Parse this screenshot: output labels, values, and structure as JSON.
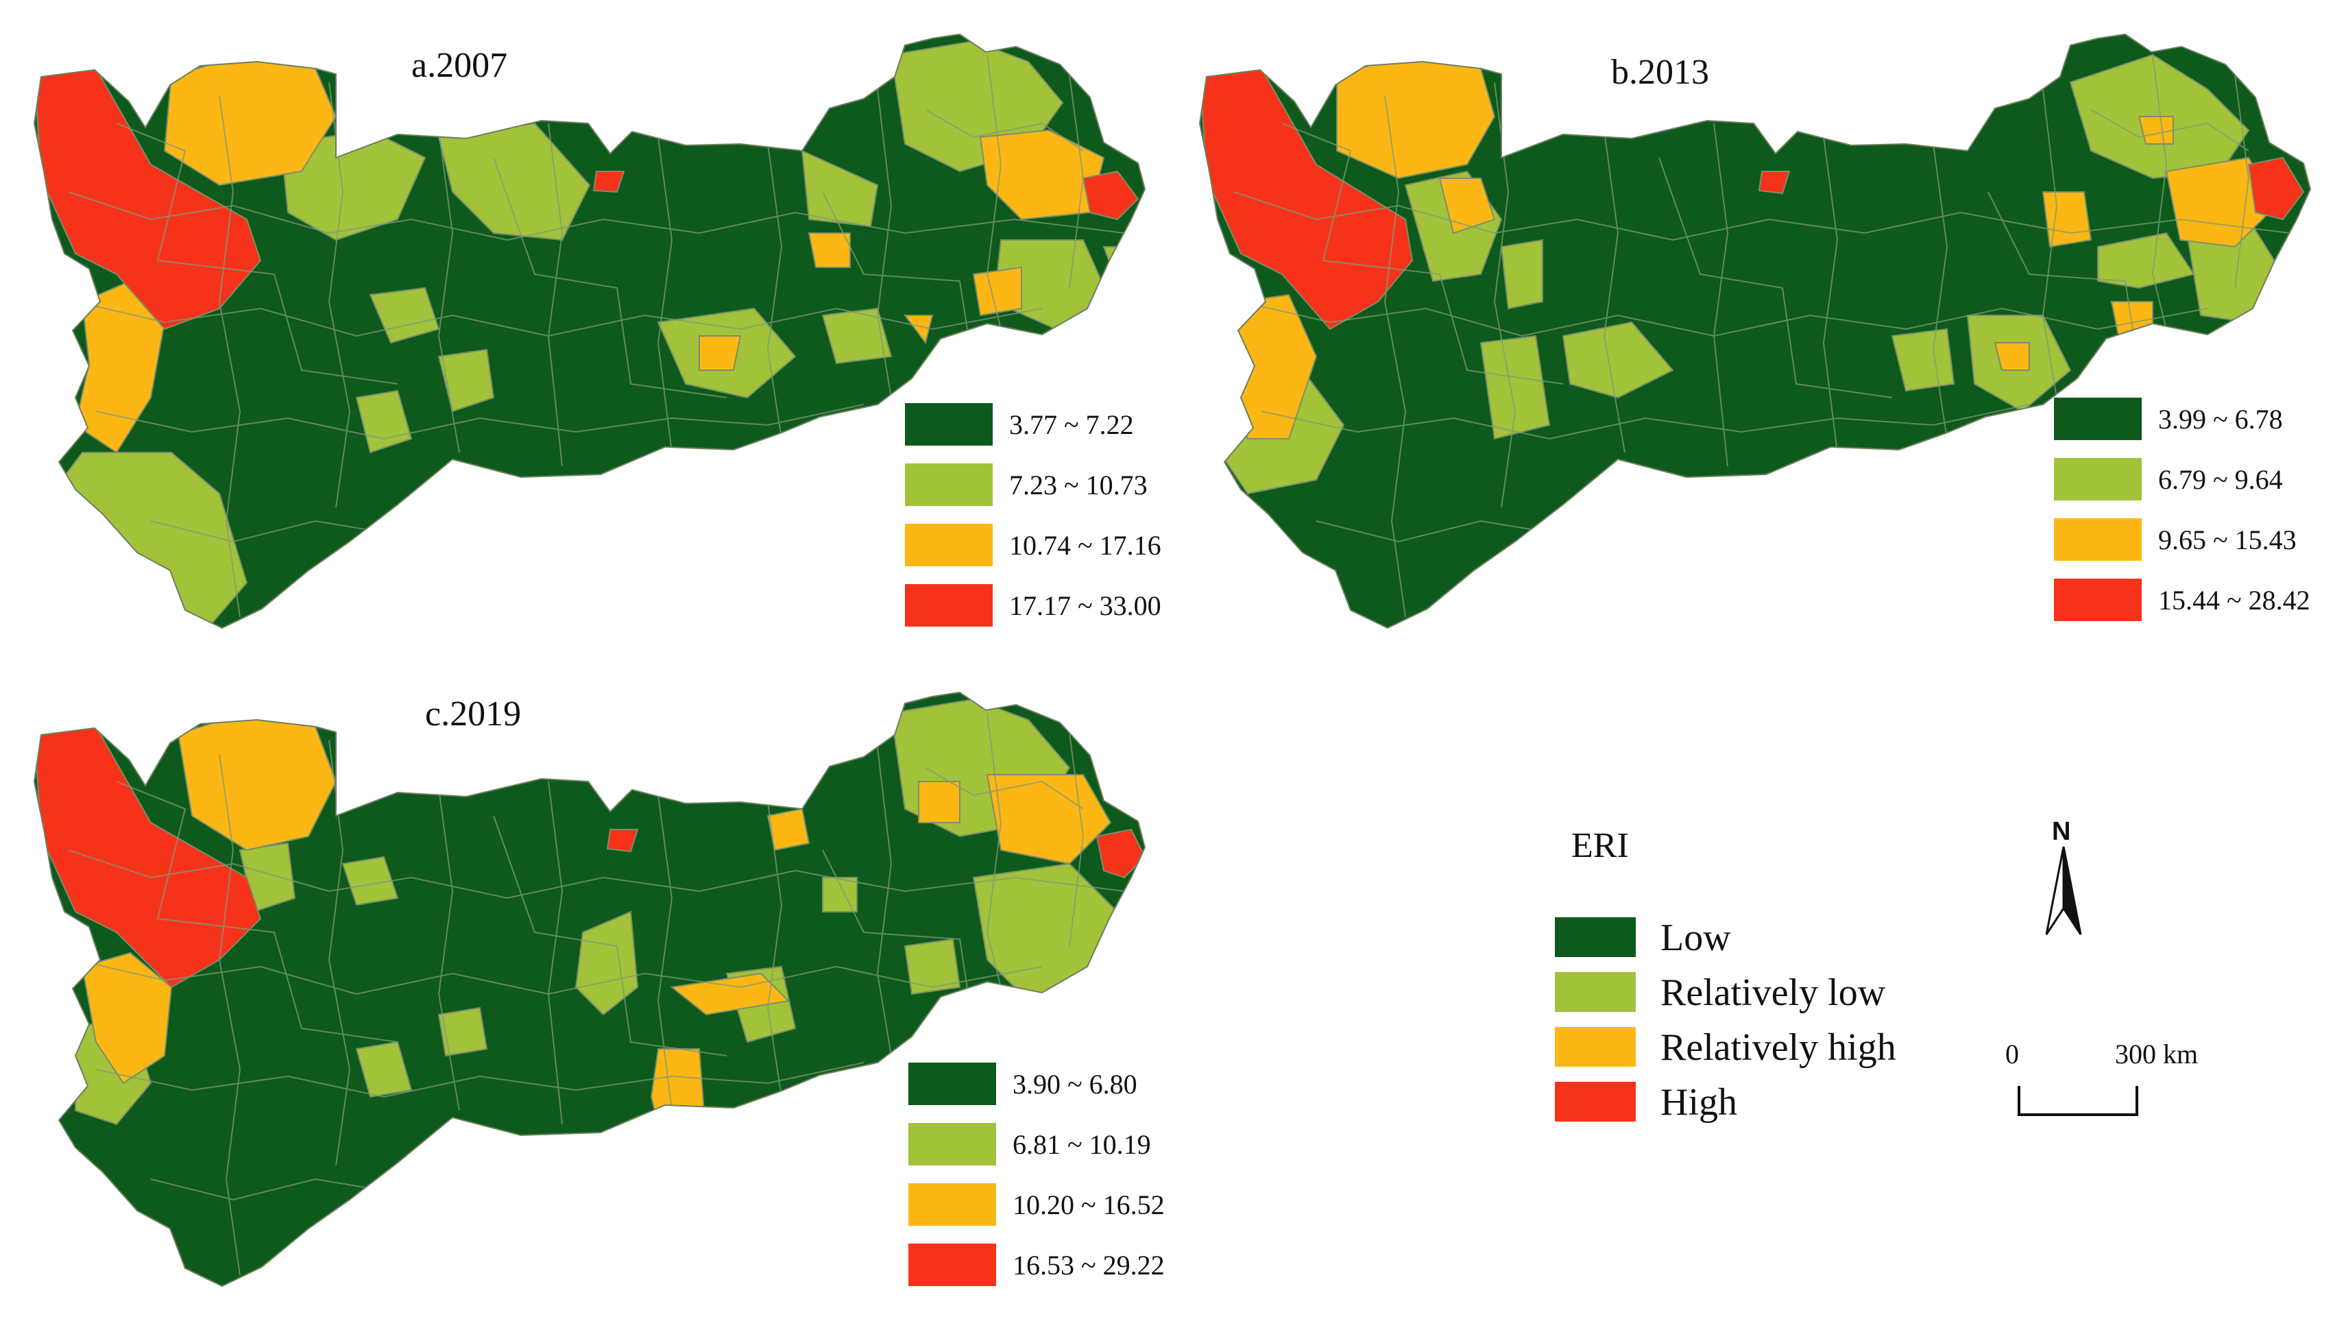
{
  "colors": {
    "low": "#0d5a1c",
    "relatively_low": "#a2c23a",
    "relatively_high": "#fdb714",
    "high": "#f7321a",
    "boundary": "#7a8f6a"
  },
  "panels": [
    {
      "title": "a.2007",
      "classes": [
        {
          "range": "3.77 ~ 7.22",
          "level": "low"
        },
        {
          "range": "7.23 ~ 10.73",
          "level": "relatively_low"
        },
        {
          "range": "10.74 ~ 17.16",
          "level": "relatively_high"
        },
        {
          "range": "17.17 ~ 33.00",
          "level": "high"
        }
      ]
    },
    {
      "title": "b.2013",
      "classes": [
        {
          "range": "3.99 ~ 6.78",
          "level": "low"
        },
        {
          "range": "6.79 ~ 9.64",
          "level": "relatively_low"
        },
        {
          "range": "9.65 ~ 15.43",
          "level": "relatively_high"
        },
        {
          "range": "15.44 ~ 28.42",
          "level": "high"
        }
      ]
    },
    {
      "title": "c.2019",
      "classes": [
        {
          "range": "3.90 ~ 6.80",
          "level": "low"
        },
        {
          "range": "6.81 ~ 10.19",
          "level": "relatively_low"
        },
        {
          "range": "10.20 ~ 16.52",
          "level": "relatively_high"
        },
        {
          "range": "16.53 ~ 29.22",
          "level": "high"
        }
      ]
    }
  ],
  "legend": {
    "title": "ERI",
    "items": [
      {
        "label": "Low",
        "level": "low"
      },
      {
        "label": "Relatively low",
        "level": "relatively_low"
      },
      {
        "label": "Relatively high",
        "level": "relatively_high"
      },
      {
        "label": "High",
        "level": "high"
      }
    ]
  },
  "north_arrow": {
    "label": "N"
  },
  "scale_bar": {
    "start": "0",
    "end": "300 km"
  }
}
